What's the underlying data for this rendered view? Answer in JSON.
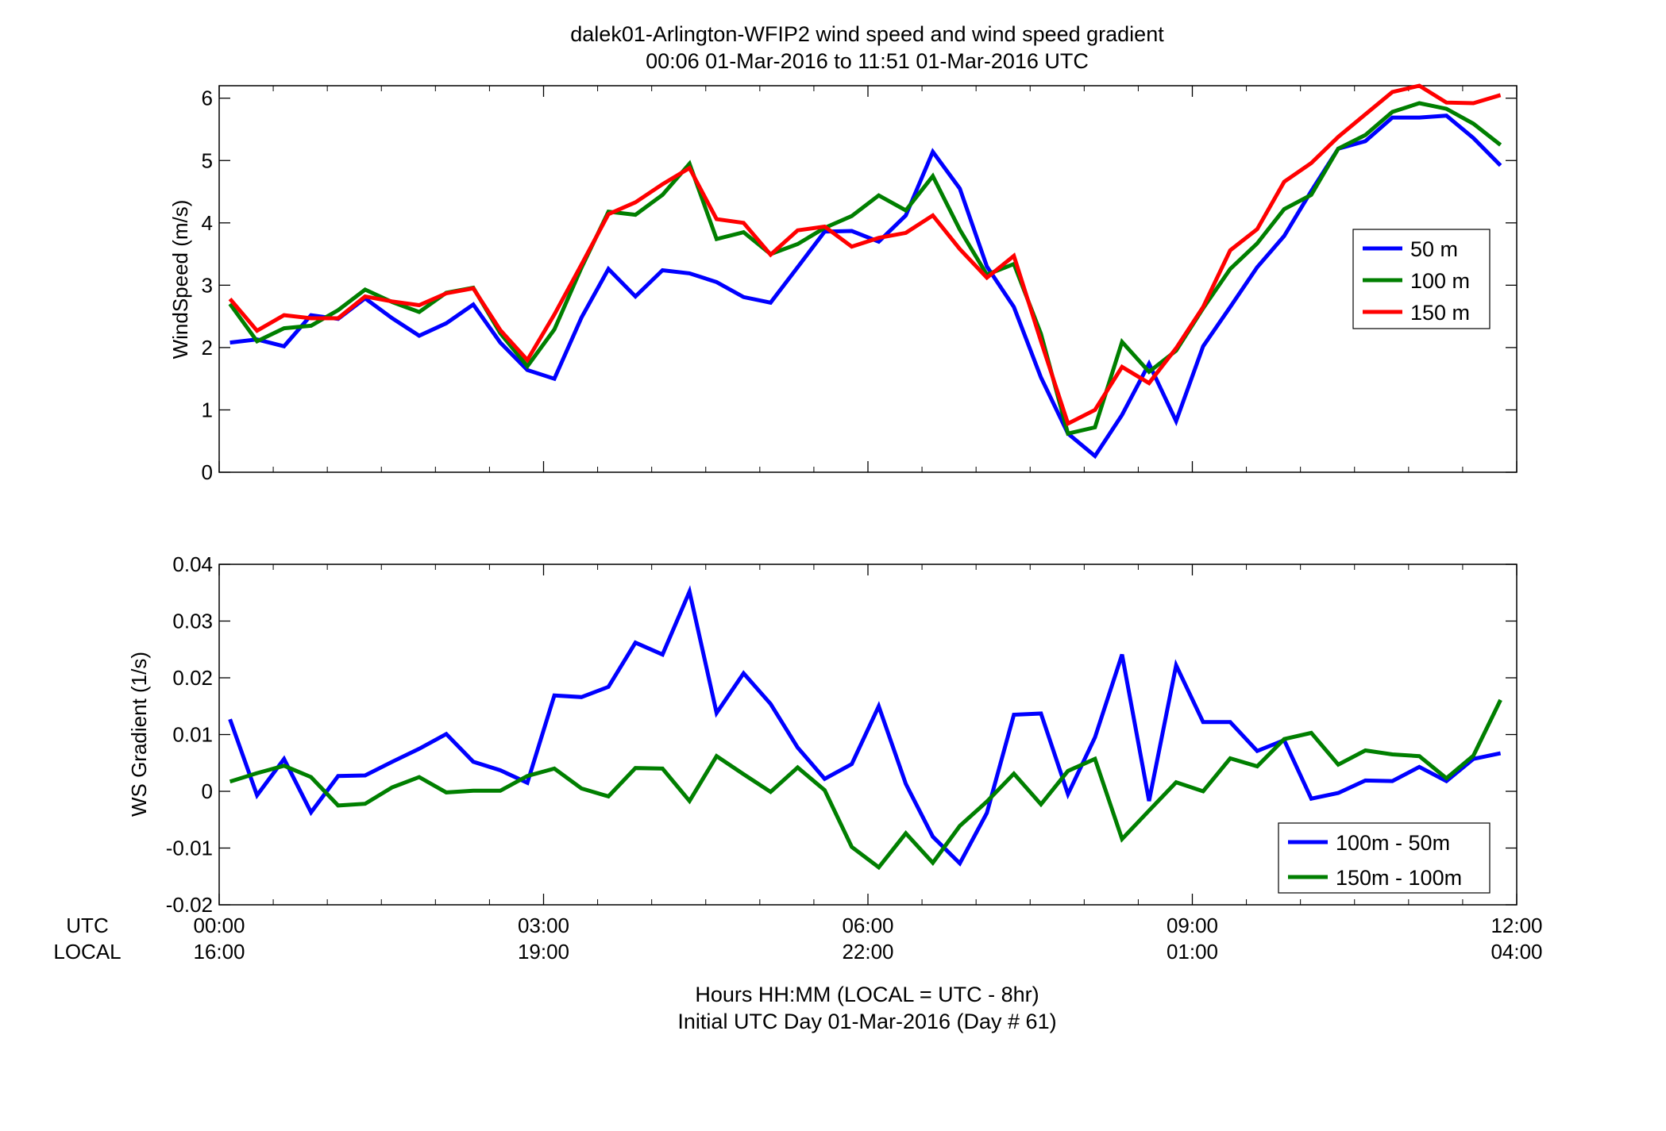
{
  "figure": {
    "title_line1": "dalek01-Arlington-WFIP2  wind speed and wind speed gradient",
    "title_line2": "00:06 01-Mar-2016 to 11:51 01-Mar-2016  UTC",
    "row_label_utc": "UTC",
    "row_label_local": "LOCAL",
    "x_ticks_utc": [
      "00:00",
      "03:00",
      "06:00",
      "09:00",
      "12:00"
    ],
    "x_ticks_local": [
      "16:00",
      "19:00",
      "22:00",
      "01:00",
      "04:00"
    ],
    "footer_line1": "Hours HH:MM  (LOCAL = UTC - 8hr)",
    "footer_line2": "Initial UTC Day 01-Mar-2016 (Day # 61)"
  },
  "chart_data": [
    {
      "type": "line",
      "ylabel": "WindSpeed (m/s)",
      "xlim": [
        0,
        12
      ],
      "ylim": [
        0,
        6.2
      ],
      "yticks": [
        0,
        1,
        2,
        3,
        4,
        5,
        6
      ],
      "ytick_labels": [
        "0",
        "1",
        "2",
        "3",
        "4",
        "5",
        "6"
      ],
      "x_ticks": [
        0,
        3,
        6,
        9,
        12
      ],
      "grid": false,
      "legend_position": "right",
      "x": [
        0.1,
        0.35,
        0.6,
        0.85,
        1.1,
        1.35,
        1.6,
        1.85,
        2.1,
        2.35,
        2.6,
        2.85,
        3.1,
        3.35,
        3.6,
        3.85,
        4.1,
        4.35,
        4.6,
        4.85,
        5.1,
        5.35,
        5.6,
        5.85,
        6.1,
        6.35,
        6.6,
        6.85,
        7.1,
        7.35,
        7.6,
        7.85,
        8.1,
        8.35,
        8.6,
        8.85,
        9.1,
        9.35,
        9.6,
        9.85,
        10.1,
        10.35,
        10.6,
        10.85,
        11.1,
        11.35,
        11.6,
        11.85
      ],
      "series": [
        {
          "name": "50 m",
          "color": "#0000ff",
          "values": [
            2.08,
            2.13,
            2.02,
            2.52,
            2.46,
            2.79,
            2.47,
            2.19,
            2.39,
            2.69,
            2.08,
            1.64,
            1.5,
            2.48,
            3.26,
            2.82,
            3.24,
            3.19,
            3.05,
            2.81,
            2.72,
            3.29,
            3.86,
            3.87,
            3.7,
            4.12,
            5.14,
            4.55,
            3.3,
            2.65,
            1.52,
            0.62,
            0.26,
            0.92,
            1.74,
            0.82,
            2.02,
            2.65,
            3.29,
            3.79,
            4.51,
            5.19,
            5.31,
            5.69,
            5.69,
            5.72,
            5.36,
            4.92
          ]
        },
        {
          "name": "100 m",
          "color": "#007f00",
          "values": [
            2.7,
            2.1,
            2.31,
            2.35,
            2.6,
            2.93,
            2.73,
            2.57,
            2.88,
            2.96,
            2.23,
            1.7,
            2.29,
            3.28,
            4.18,
            4.13,
            4.45,
            4.95,
            3.74,
            3.85,
            3.5,
            3.66,
            3.92,
            4.11,
            4.44,
            4.2,
            4.75,
            3.89,
            3.17,
            3.34,
            2.22,
            0.62,
            0.72,
            2.09,
            1.61,
            1.95,
            2.63,
            3.26,
            3.67,
            4.22,
            4.45,
            5.19,
            5.41,
            5.78,
            5.92,
            5.83,
            5.59,
            5.25
          ]
        },
        {
          "name": "150 m",
          "color": "#ff0000",
          "values": [
            2.78,
            2.27,
            2.52,
            2.47,
            2.47,
            2.82,
            2.74,
            2.68,
            2.87,
            2.95,
            2.28,
            1.8,
            2.53,
            3.33,
            4.14,
            4.33,
            4.62,
            4.88,
            4.06,
            4.0,
            3.49,
            3.88,
            3.94,
            3.62,
            3.76,
            3.84,
            4.12,
            3.58,
            3.12,
            3.47,
            2.1,
            0.78,
            1.0,
            1.69,
            1.43,
            1.99,
            2.65,
            3.56,
            3.9,
            4.66,
            4.96,
            5.38,
            5.74,
            6.1,
            6.2,
            5.93,
            5.92,
            6.05
          ]
        }
      ]
    },
    {
      "type": "line",
      "ylabel": "WS Gradient (1/s)",
      "xlim": [
        0,
        12
      ],
      "ylim": [
        -0.02,
        0.04
      ],
      "yticks": [
        -0.02,
        -0.01,
        0,
        0.01,
        0.02,
        0.03,
        0.04
      ],
      "ytick_labels": [
        "-0.02",
        "-0.01",
        "0",
        "0.01",
        "0.02",
        "0.03",
        "0.04"
      ],
      "x_ticks": [
        0,
        3,
        6,
        9,
        12
      ],
      "grid": false,
      "legend_position": "bottom-right",
      "x": [
        0.1,
        0.35,
        0.6,
        0.85,
        1.1,
        1.35,
        1.6,
        1.85,
        2.1,
        2.35,
        2.6,
        2.85,
        3.1,
        3.35,
        3.6,
        3.85,
        4.1,
        4.35,
        4.6,
        4.85,
        5.1,
        5.35,
        5.6,
        5.85,
        6.1,
        6.35,
        6.6,
        6.85,
        7.1,
        7.35,
        7.6,
        7.85,
        8.1,
        8.35,
        8.6,
        8.85,
        9.1,
        9.35,
        9.6,
        9.85,
        10.1,
        10.35,
        10.6,
        10.85,
        11.1,
        11.35,
        11.6,
        11.85
      ],
      "series": [
        {
          "name": "100m - 50m",
          "color": "#0000ff",
          "values": [
            0.0127,
            -0.0007,
            0.0057,
            -0.0037,
            0.0027,
            0.0028,
            0.0052,
            0.0075,
            0.0101,
            0.0052,
            0.0037,
            0.0015,
            0.0169,
            0.0166,
            0.0184,
            0.0262,
            0.0241,
            0.0352,
            0.0138,
            0.0208,
            0.0154,
            0.0077,
            0.0022,
            0.0048,
            0.015,
            0.0013,
            -0.008,
            -0.0127,
            -0.0038,
            0.0135,
            0.0137,
            -0.0005,
            0.0095,
            0.0241,
            -0.0017,
            0.0222,
            0.0122,
            0.0122,
            0.0071,
            0.009,
            -0.0013,
            -0.0003,
            0.0019,
            0.0018,
            0.0043,
            0.0018,
            0.0057,
            0.0067
          ]
        },
        {
          "name": "150m - 100m",
          "color": "#007f00",
          "values": [
            0.0017,
            0.0032,
            0.0045,
            0.0025,
            -0.0025,
            -0.0022,
            0.0007,
            0.0025,
            -0.0002,
            0.0001,
            0.0001,
            0.0027,
            0.004,
            0.0005,
            -0.0009,
            0.0041,
            0.004,
            -0.0017,
            0.0062,
            0.003,
            -0.0001,
            0.0042,
            0.0002,
            -0.0098,
            -0.0134,
            -0.0074,
            -0.0126,
            -0.0061,
            -0.0018,
            0.0031,
            -0.0023,
            0.0036,
            0.0057,
            -0.0084,
            -0.0034,
            0.0016,
            0.0,
            0.0058,
            0.0044,
            0.0092,
            0.0103,
            0.0047,
            0.0072,
            0.0065,
            0.0062,
            0.0023,
            0.0063,
            0.0161
          ]
        }
      ]
    }
  ]
}
